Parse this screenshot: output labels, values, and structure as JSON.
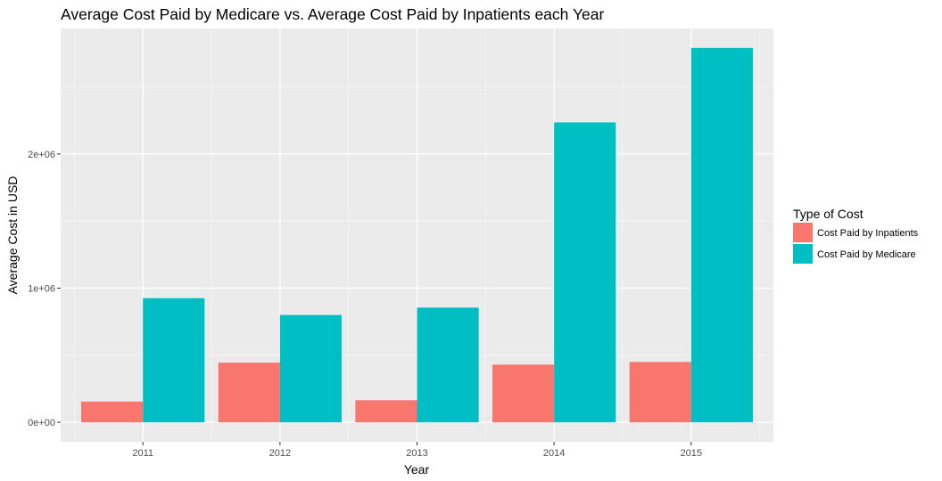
{
  "chart_data": {
    "type": "bar",
    "title": "Average Cost Paid by Medicare vs. Average Cost Paid by Inpatients each Year",
    "xlabel": "Year",
    "ylabel": "Average Cost in USD",
    "categories": [
      "2011",
      "2012",
      "2013",
      "2014",
      "2015"
    ],
    "series": [
      {
        "name": "Cost Paid by Inpatients",
        "color": "#F8766D",
        "values": [
          155000,
          445000,
          165000,
          430000,
          450000
        ]
      },
      {
        "name": "Cost Paid by Medicare",
        "color": "#00BFC4",
        "values": [
          925000,
          800000,
          855000,
          2235000,
          2790000
        ]
      }
    ],
    "yticks": [
      {
        "value": 0,
        "label": "0e+00"
      },
      {
        "value": 1000000,
        "label": "1e+06"
      },
      {
        "value": 2000000,
        "label": "2e+06"
      }
    ],
    "ylim": [
      -145000,
      2935000
    ],
    "grid": true,
    "legend": {
      "title": "Type of Cost",
      "placement": "right"
    }
  }
}
